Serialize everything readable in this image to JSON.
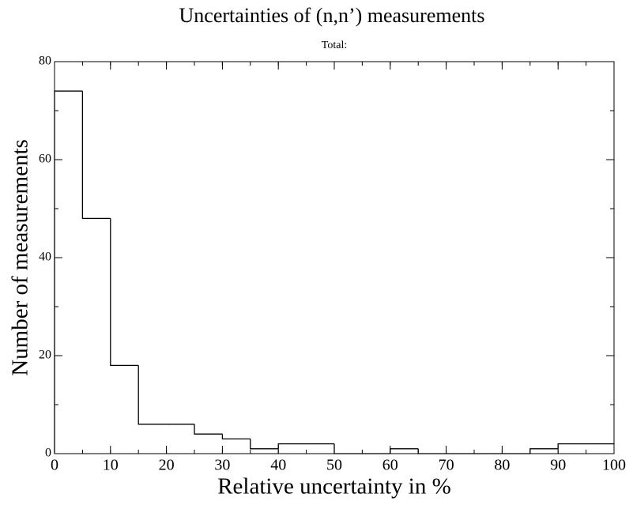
{
  "chart_data": {
    "type": "histogram",
    "title": "Uncertainties of (n,n’) measurements",
    "subtitle": "Total:",
    "x_label": "Relative uncertainty in %",
    "y_label": "Number of measurements",
    "bins": [
      0,
      5,
      10,
      15,
      20,
      25,
      30,
      35,
      40,
      45,
      50,
      55,
      60,
      65,
      70,
      75,
      80,
      85,
      90,
      95,
      100
    ],
    "values": [
      74,
      48,
      18,
      6,
      6,
      4,
      3,
      1,
      2,
      2,
      0,
      0,
      1,
      0,
      0,
      0,
      0,
      1,
      2,
      2
    ],
    "color": "#000000",
    "xlim": [
      0,
      100
    ],
    "xticks": [
      0,
      10,
      20,
      30,
      40,
      50,
      60,
      70,
      80,
      90,
      100
    ],
    "ylim": [
      0,
      80
    ],
    "yticks": [
      0,
      20,
      40,
      60,
      80
    ]
  }
}
